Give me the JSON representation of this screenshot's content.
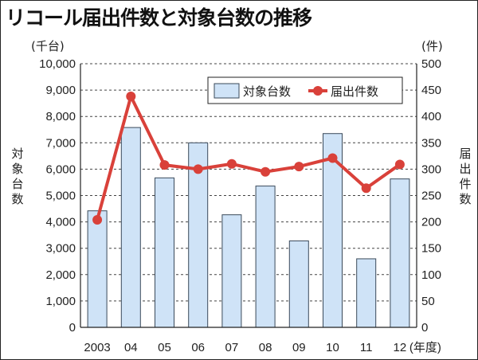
{
  "title": "リコール届出件数と対象台数の推移",
  "chart_data": {
    "type": "bar+line",
    "title": "リコール届出件数と対象台数の推移",
    "categories": [
      "2003",
      "04",
      "05",
      "06",
      "07",
      "08",
      "09",
      "10",
      "11",
      "12"
    ],
    "x_unit": "(年度)",
    "series": [
      {
        "name": "対象台数",
        "type": "bar",
        "axis": "left",
        "color": "#cfe3f7",
        "values": [
          4420,
          7580,
          5670,
          7000,
          4270,
          5360,
          3280,
          7350,
          2600,
          5630
        ]
      },
      {
        "name": "届出件数",
        "type": "line",
        "axis": "right",
        "color": "#d9413a",
        "values": [
          204,
          438,
          308,
          300,
          310,
          295,
          305,
          321,
          264,
          309
        ]
      }
    ],
    "ylabel_left": "対象台数",
    "ylabel_right": "届出件数",
    "unit_left": "(千台)",
    "unit_right": "(件)",
    "ylim_left": [
      0,
      10000
    ],
    "ylim_right": [
      0,
      500
    ],
    "yticks_left": [
      "0",
      "1,000",
      "2,000",
      "3,000",
      "4,000",
      "5,000",
      "6,000",
      "7,000",
      "8,000",
      "9,000",
      "10,000"
    ],
    "yticks_right": [
      "0",
      "50",
      "100",
      "150",
      "200",
      "250",
      "300",
      "350",
      "400",
      "450",
      "500"
    ],
    "grid": true,
    "legend": "top-right"
  }
}
